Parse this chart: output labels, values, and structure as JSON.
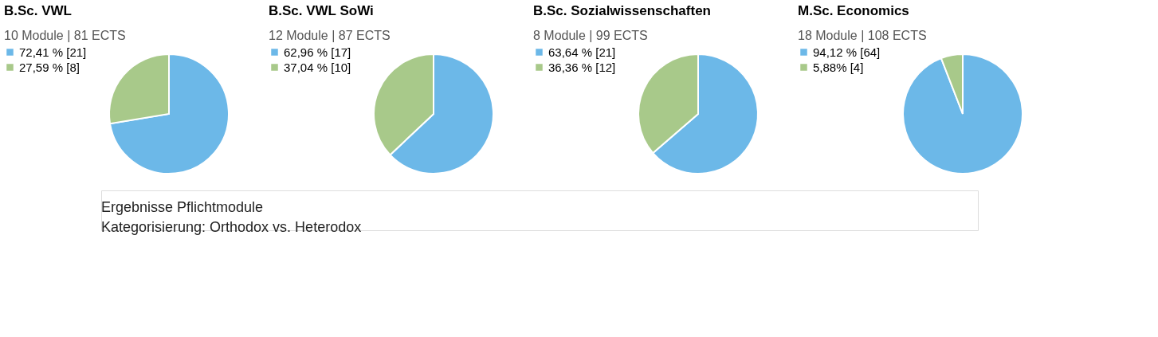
{
  "chart_data": [
    {
      "type": "pie",
      "title": "B.Sc. VWL",
      "subtitle": "10 Module | 81 ECTS",
      "categories": [
        "72,41 % [21]",
        "27,59 % [8]"
      ],
      "values": [
        72.41,
        27.59
      ],
      "colors": [
        "#6cb8e8",
        "#a8c98a"
      ],
      "legend": "left",
      "annotations": [
        "Ergebnisse Pflichtmodule",
        "Kategorisierung: Orthodox vs. Heterodox"
      ]
    },
    {
      "type": "pie",
      "title": "B.Sc. VWL SoWi",
      "subtitle": "12 Module | 87 ECTS",
      "categories": [
        "62,96 % [17]",
        "37,04 % [10]"
      ],
      "values": [
        62.96,
        37.04
      ],
      "colors": [
        "#6cb8e8",
        "#a8c98a"
      ],
      "legend": "left"
    },
    {
      "type": "pie",
      "title": "B.Sc. Sozialwissenschaften",
      "subtitle": "8 Module | 99 ECTS",
      "categories": [
        "63,64 % [21]",
        "36,36 % [12]"
      ],
      "values": [
        63.64,
        36.36
      ],
      "colors": [
        "#6cb8e8",
        "#a8c98a"
      ],
      "legend": "left"
    },
    {
      "type": "pie",
      "title": "M.Sc. Economics",
      "subtitle": "18 Module | 108 ECTS",
      "categories": [
        "94,12 % [64]",
        "5,88% [4]"
      ],
      "values": [
        94.12,
        5.88
      ],
      "colors": [
        "#6cb8e8",
        "#a8c98a"
      ],
      "legend": "left"
    }
  ]
}
